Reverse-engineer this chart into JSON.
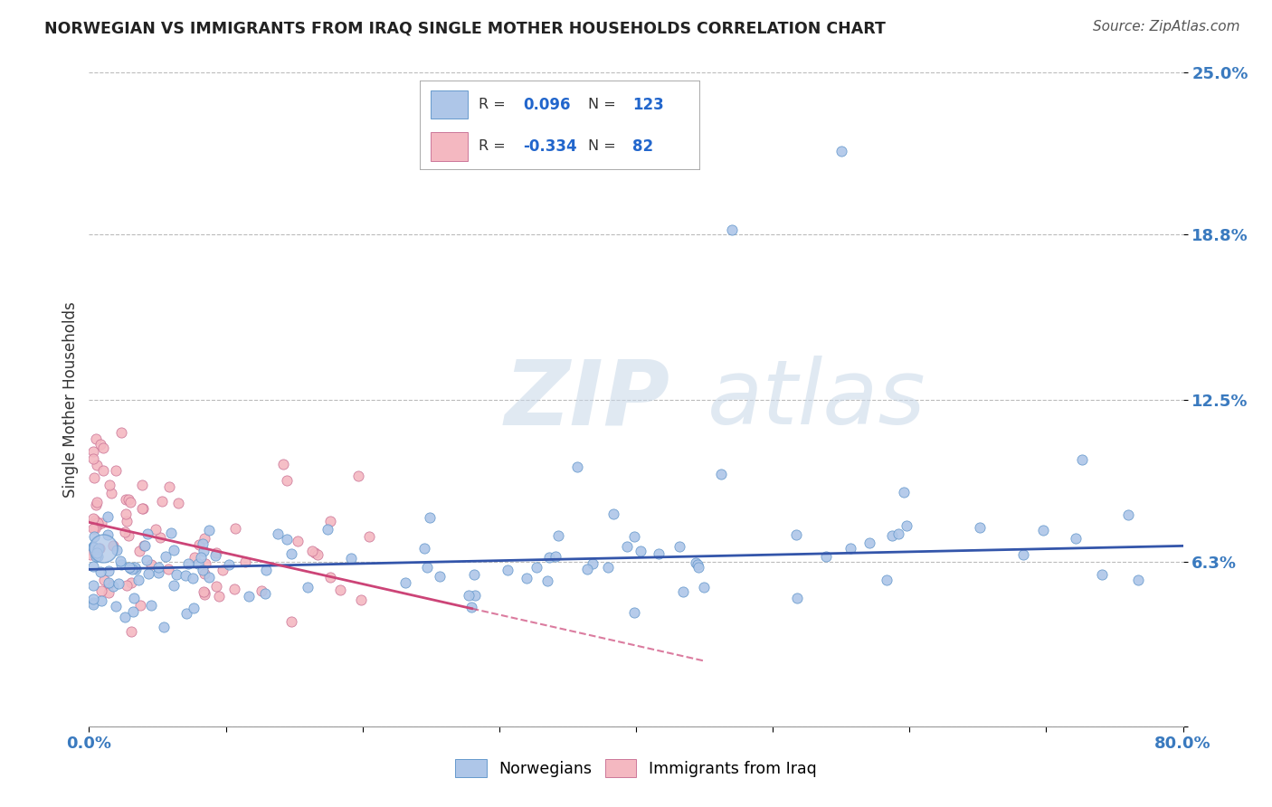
{
  "title": "NORWEGIAN VS IMMIGRANTS FROM IRAQ SINGLE MOTHER HOUSEHOLDS CORRELATION CHART",
  "source": "Source: ZipAtlas.com",
  "ylabel": "Single Mother Households",
  "xlim": [
    0.0,
    80.0
  ],
  "ylim": [
    0.0,
    25.0
  ],
  "yticks": [
    0.0,
    6.3,
    12.5,
    18.8,
    25.0
  ],
  "ytick_labels": [
    "",
    "6.3%",
    "12.5%",
    "18.8%",
    "25.0%"
  ],
  "xtick_vals": [
    0,
    10,
    20,
    30,
    40,
    50,
    60,
    70,
    80
  ],
  "xtick_labels": [
    "0.0%",
    "",
    "",
    "",
    "",
    "",
    "",
    "",
    "80.0%"
  ],
  "blue_color": "#aec6e8",
  "pink_color": "#f4b8c1",
  "blue_edge": "#6699cc",
  "pink_edge": "#cc7799",
  "trend_blue": "#3355aa",
  "trend_pink": "#cc4477",
  "background": "#ffffff",
  "grid_color": "#bbbbbb",
  "legend_R_blue": "0.096",
  "legend_N_blue": "123",
  "legend_R_pink": "-0.334",
  "legend_N_pink": "82",
  "watermark_ZIP_color": "#c8d8e8",
  "watermark_atlas_color": "#c8d8e8",
  "title_color": "#222222",
  "source_color": "#555555",
  "ytick_color": "#3a7abf",
  "xtick_color": "#3a7abf",
  "trend_blue_start_x": 0,
  "trend_blue_end_x": 80,
  "trend_blue_start_y": 6.0,
  "trend_blue_end_y": 6.9,
  "trend_pink_start_x": 0,
  "trend_pink_end_x": 45,
  "trend_pink_start_y": 7.8,
  "trend_pink_end_y": 2.5
}
